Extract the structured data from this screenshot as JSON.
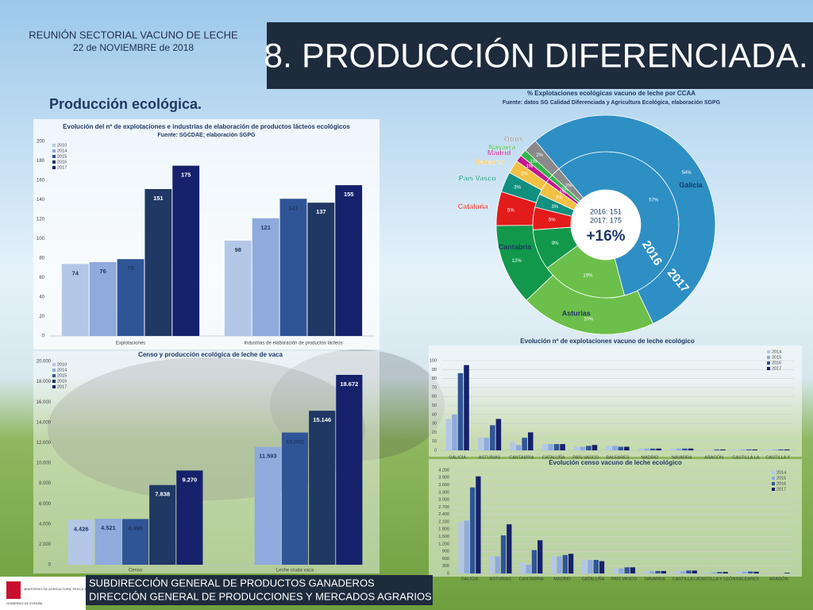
{
  "header": {
    "org": "REUNIÓN SECTORIAL VACUNO DE LECHE",
    "date": "22 de NOVIEMBRE de 2018",
    "title": "8. PRODUCCIÓN DIFERENCIADA.",
    "section": "Producción ecológica."
  },
  "footer": {
    "lines": [
      "SUBDIRECCIÓN GENERAL DE PRODUCTOS GANADEROS",
      "DIRECCIÓN GENERAL DE PRODUCCIONES Y MERCADOS AGRARIOS"
    ],
    "logo": [
      "GOBIERNO DE ESPAÑA",
      "MINISTERIO DE AGRICULTURA, PESCA Y ALIMENTACIÓN"
    ]
  },
  "chart_data": [
    {
      "type": "bar",
      "title": "Evolución del nº de explotaciones e industrias de elaboración de productos lácteos ecológicos",
      "subtitle": "Fuente: SGCDAE; elaboración SGPG",
      "categories": [
        "Explotaciones",
        "Industrias de elaboración de productos lácteos"
      ],
      "series": [
        {
          "name": "2010",
          "color": "#b4c7e7",
          "values": [
            74,
            98
          ]
        },
        {
          "name": "2014",
          "color": "#8faadc",
          "values": [
            76,
            121
          ]
        },
        {
          "name": "2015",
          "color": "#2f5597",
          "values": [
            79,
            141
          ]
        },
        {
          "name": "2016",
          "color": "#203864",
          "values": [
            151,
            137
          ]
        },
        {
          "name": "2017",
          "color": "#15216b",
          "values": [
            175,
            155
          ]
        }
      ],
      "ylim": [
        0,
        200
      ],
      "yticks": [
        0,
        20,
        40,
        60,
        80,
        100,
        120,
        140,
        160,
        180,
        200
      ],
      "grid": false,
      "data_labels": true,
      "legend": "top-left"
    },
    {
      "type": "bar",
      "title": "Censo y producción ecológica de leche de vaca",
      "categories": [
        "Censo",
        "Leche cruda vaca"
      ],
      "series": [
        {
          "name": "2010",
          "color": "#b4c7e7",
          "values": [
            4426,
            null
          ],
          "value_labels": [
            "4.426",
            null
          ]
        },
        {
          "name": "2014",
          "color": "#8faadc",
          "values": [
            4521,
            11593
          ],
          "value_labels": [
            "4.521",
            "11.593"
          ]
        },
        {
          "name": "2015",
          "color": "#2f5597",
          "values": [
            4496,
            13002
          ],
          "value_labels": [
            "4.496",
            "13.002"
          ]
        },
        {
          "name": "2016",
          "color": "#203864",
          "values": [
            7838,
            15146
          ],
          "value_labels": [
            "7.838",
            "15.146"
          ]
        },
        {
          "name": "2017",
          "color": "#15216b",
          "values": [
            9270,
            18672
          ],
          "value_labels": [
            "9.270",
            "18.672"
          ]
        }
      ],
      "ylim": [
        0,
        20000
      ],
      "yticks": [
        0,
        {
          "value": 2000,
          "label": "2.000"
        },
        {
          "value": 4000,
          "label": "4.000"
        },
        {
          "value": 6000,
          "label": "6.000"
        },
        {
          "value": 8000,
          "label": "8.000"
        },
        {
          "value": 10000,
          "label": "10.000"
        },
        {
          "value": 12000,
          "label": "12.000"
        },
        {
          "value": 14000,
          "label": "14.000"
        },
        {
          "value": 16000,
          "label": "16.000"
        },
        {
          "value": 18000,
          "label": "18.000"
        },
        {
          "value": 20000,
          "label": "20.000"
        }
      ],
      "grid": false,
      "data_labels": true,
      "legend": "top-left"
    },
    {
      "type": "donut",
      "title": "% Explotaciones ecológicas vacuno de leche por CCAA",
      "subtitle": "Fuente: datos SG Calidad Diferenciada y Agricultura Ecológica, elaboración SGPG",
      "categories": [
        "Galicia",
        "Asturias",
        "Cantabria",
        "Cataluña",
        "País Vasco",
        "Baleares",
        "Madrid",
        "Navarra",
        "Otros"
      ],
      "colors": [
        "#2e8fc4",
        "#6cbf4a",
        "#11984b",
        "#e31b1b",
        "#11907f",
        "#f2c043",
        "#c2188f",
        "#33b44a",
        "#8a8a8a"
      ],
      "series": [
        {
          "name": "2016",
          "values": [
            57,
            19,
            9,
            5,
            3,
            3,
            1,
            1,
            2
          ],
          "value_labels": [
            "57%",
            "19%",
            "9%",
            "5%",
            "3%",
            "3%",
            "1%",
            "1%",
            "2%"
          ]
        },
        {
          "name": "2017",
          "values": [
            54,
            20,
            12,
            5,
            3,
            2,
            1,
            1,
            2
          ],
          "value_labels": [
            "54%",
            "20%",
            "12%",
            "5%",
            "3%",
            "2%",
            "1%",
            "1%",
            "2%"
          ]
        }
      ],
      "annotations": [
        "2016: 151",
        "2017: 175",
        "+16%"
      ]
    },
    {
      "type": "bar",
      "title": "Evolución nº de explotaciones vacuno de leche ecológico",
      "categories": [
        "GALICIA",
        "ASTURIAS",
        "CANTABRIA",
        "CATALUÑA",
        "PAÍS VASCO",
        "BALEARES",
        "MADRID",
        "NAVARRA",
        "ARAGÓN",
        "CASTILLA LA",
        "CASTILLA Y"
      ],
      "series": [
        {
          "name": "2014",
          "color": "#b4c7e7",
          "values": [
            35,
            14,
            9,
            7,
            4,
            5,
            2,
            2,
            0,
            1,
            1
          ]
        },
        {
          "name": "2015",
          "color": "#8faadc",
          "values": [
            40,
            14,
            6,
            7,
            4,
            5,
            2,
            2,
            0,
            1,
            1
          ]
        },
        {
          "name": "2016",
          "color": "#2f5597",
          "values": [
            86,
            28,
            14,
            7,
            5,
            4,
            2,
            2,
            1,
            1,
            1
          ]
        },
        {
          "name": "2017",
          "color": "#15216b",
          "values": [
            95,
            35,
            20,
            7,
            6,
            4,
            2,
            2,
            1,
            1,
            1
          ]
        }
      ],
      "ylim": [
        0,
        100
      ],
      "yticks": [
        0,
        10,
        20,
        30,
        40,
        50,
        60,
        70,
        80,
        90,
        100
      ],
      "grid": true,
      "data_labels": false,
      "legend": "top-right"
    },
    {
      "type": "bar",
      "title": "Evolución censo vacuno de leche ecológico",
      "categories": [
        "GALICIA",
        "ASTURIAS",
        "CANTABRIA",
        "MADRID",
        "CATALUÑA",
        "PAÍS VASCO",
        "NAVARRA",
        "CASTILLA LA",
        "CASTILLA Y LEÓN",
        "BALEARES",
        "ARAGÓN"
      ],
      "series": [
        {
          "name": "2014",
          "color": "#b4c7e7",
          "values": [
            2100,
            700,
            450,
            700,
            550,
            200,
            100,
            100,
            50,
            80,
            0
          ]
        },
        {
          "name": "2015",
          "color": "#8faadc",
          "values": [
            2150,
            700,
            350,
            700,
            550,
            200,
            100,
            100,
            50,
            80,
            0
          ]
        },
        {
          "name": "2016",
          "color": "#2f5597",
          "values": [
            3500,
            1550,
            950,
            750,
            550,
            250,
            100,
            120,
            60,
            80,
            0
          ]
        },
        {
          "name": "2017",
          "color": "#15216b",
          "values": [
            3950,
            2000,
            1350,
            800,
            500,
            250,
            100,
            120,
            60,
            70,
            30
          ]
        }
      ],
      "ylim": [
        0,
        4200
      ],
      "yticks": [
        0,
        300,
        600,
        900,
        {
          "value": 1200,
          "label": "1.200"
        },
        {
          "value": 1500,
          "label": "1.500"
        },
        {
          "value": 1800,
          "label": "1.800"
        },
        {
          "value": 2100,
          "label": "2.100"
        },
        {
          "value": 2400,
          "label": "2.400"
        },
        {
          "value": 2700,
          "label": "2.700"
        },
        {
          "value": 3000,
          "label": "3.000"
        },
        {
          "value": 3300,
          "label": "3.300"
        },
        {
          "value": 3600,
          "label": "3.600"
        },
        {
          "value": 3900,
          "label": "3.900"
        },
        {
          "value": 4200,
          "label": "4.200"
        }
      ],
      "grid": true,
      "data_labels": false,
      "legend": "top-right"
    }
  ]
}
